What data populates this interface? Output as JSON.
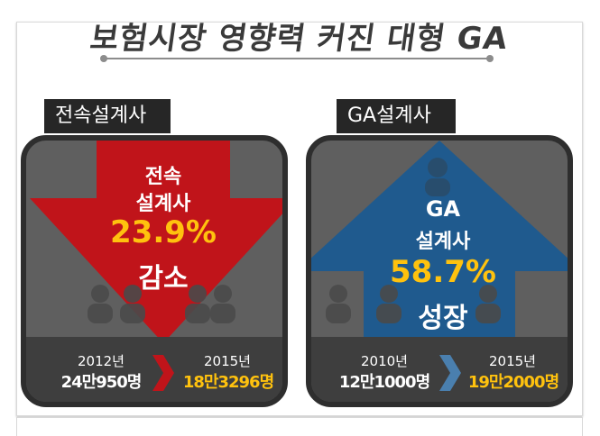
{
  "title": "보험시장 영향력 커진 대형 GA",
  "colors": {
    "red_arrow": "#c0141a",
    "blue_arrow": "#1f5a8e",
    "highlight": "#ffc20e",
    "panel": "#5f5f5f"
  },
  "left_panel": {
    "tag": "전속설계사",
    "line1": "전속",
    "line2": "설계사",
    "percent": "23.9%",
    "change": "감소",
    "from_year": "2012년",
    "from_count": "24만950명",
    "to_year": "2015년",
    "to_count": "18만3296명",
    "icon": "down-arrow-icon"
  },
  "right_panel": {
    "tag": "GA설계사",
    "line1": "GA",
    "line2": "설계사",
    "percent": "58.7%",
    "change": "성장",
    "from_year": "2010년",
    "from_count": "12만1000명",
    "to_year": "2015년",
    "to_count": "19만2000명",
    "icon": "up-arrow-icon"
  }
}
